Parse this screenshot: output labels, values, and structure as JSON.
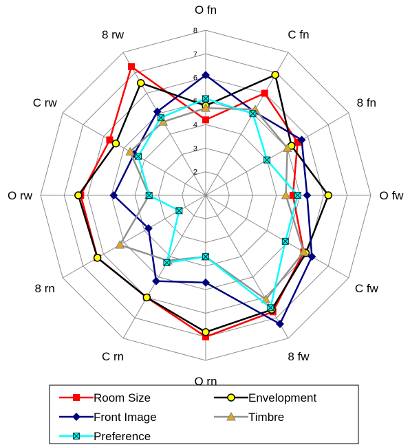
{
  "chart_data": {
    "type": "radar",
    "title": "",
    "axes": [
      "O fn",
      "C fn",
      "8 fn",
      "O fw",
      "C fw",
      "8 fw",
      "O rn",
      "C rn",
      "8 rn",
      "O rw",
      "C rw",
      "8 rw"
    ],
    "rlim": [
      1,
      8
    ],
    "ticks": [
      "2",
      "3",
      "4",
      "5",
      "6",
      "7",
      "8"
    ],
    "grid": true,
    "legend_position": "bottom",
    "series": [
      {
        "name": "Room Size",
        "color": "#ff0000",
        "marker": "square",
        "values": [
          4.2,
          6.0,
          5.5,
          4.7,
          5.8,
          6.7,
          7.0,
          6.0,
          6.3,
          6.3,
          5.7,
          7.3
        ]
      },
      {
        "name": "Envelopment",
        "color": "#000000",
        "marker": "circle",
        "values": [
          4.8,
          6.9,
          5.2,
          6.2,
          5.9,
          6.6,
          6.8,
          6.0,
          6.3,
          6.4,
          5.4,
          6.5
        ]
      },
      {
        "name": "Front Image",
        "color": "#000080",
        "marker": "diamond",
        "values": [
          6.1,
          5.1,
          5.7,
          5.3,
          6.2,
          7.3,
          4.7,
          5.2,
          3.8,
          4.9,
          4.5,
          5.1
        ]
      },
      {
        "name": "Timbre",
        "color": "#909090",
        "marker": "triangle",
        "values": [
          4.7,
          5.2,
          5.0,
          4.4,
          5.8,
          6.1,
          3.6,
          4.2,
          5.2,
          3.4,
          4.7,
          4.6
        ]
      },
      {
        "name": "Preference",
        "color": "#00ffff",
        "marker": "boxx",
        "values": [
          5.1,
          5.0,
          4.0,
          4.9,
          4.9,
          6.5,
          3.6,
          4.3,
          2.3,
          3.4,
          4.3,
          4.8
        ]
      }
    ]
  }
}
